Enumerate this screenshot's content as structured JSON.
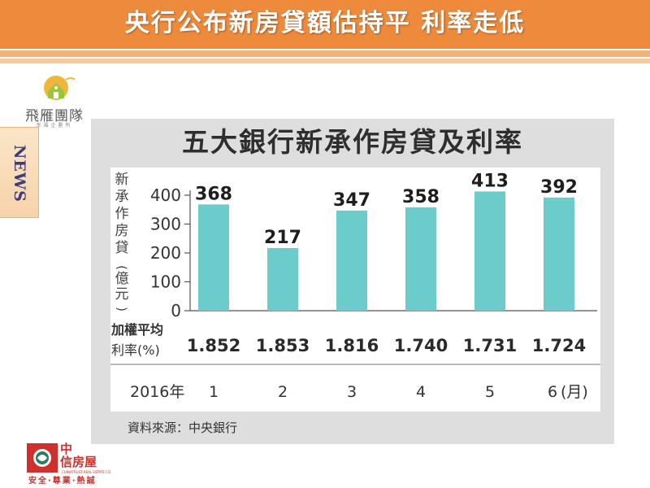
{
  "page": {
    "title": "央行公布新房貸額估持平 利率走低",
    "brand_top": "飛雁團隊",
    "brand_top_sub": "幸福企劃所",
    "news_tab": "NEWS",
    "brand_bottom_line1": "中",
    "brand_bottom_line2": "信房屋",
    "brand_bottom_english": "CHINATRUST REAL ESTATE CO.",
    "brand_bottom_slogan": "安全·尊業·熱誠",
    "colors": {
      "header": "#ee8a3c",
      "bar": "#6ccccc",
      "panel": "#dededf"
    }
  },
  "chart_data": {
    "type": "bar",
    "title": "五大銀行新承作房貸及利率",
    "ylabel_main": "新承作房貸",
    "ylabel_unit": "億元",
    "year_label": "2016年",
    "month_unit": "(月)",
    "rate_label_line1": "加權平均",
    "rate_label_line2": "利率(%)",
    "source": "資料來源：中央銀行",
    "categories": [
      "1",
      "2",
      "3",
      "4",
      "5",
      "6"
    ],
    "series": [
      {
        "values": [
          368,
          217,
          347,
          358,
          413,
          392
        ]
      }
    ],
    "rates": [
      "1.852",
      "1.853",
      "1.816",
      "1.740",
      "1.731",
      "1.724"
    ],
    "yticks": [
      0,
      100,
      200,
      300,
      400
    ],
    "ylim": [
      0,
      420
    ],
    "grid": false,
    "legend": "none"
  }
}
